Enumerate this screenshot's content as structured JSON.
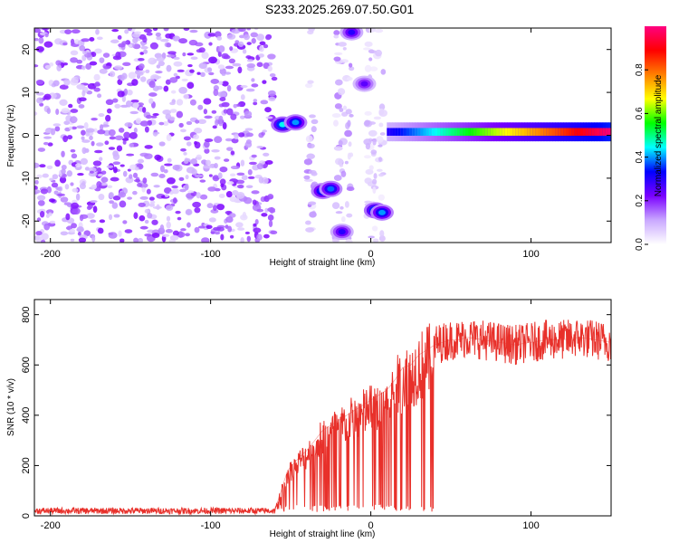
{
  "figure": {
    "title": "S233.2025.269.07.50.G01"
  },
  "chart_data": [
    {
      "type": "heatmap",
      "xlabel": "Height of straight line (km)",
      "ylabel": "Frequency (Hz)",
      "xlim": [
        -210,
        150
      ],
      "ylim": [
        -25,
        25
      ],
      "xticks": [
        -200,
        -100,
        0,
        100
      ],
      "yticks": [
        -20,
        -10,
        0,
        10,
        20
      ],
      "colorbar": {
        "label": "Normalized spectral amplitude",
        "range": [
          0,
          1
        ],
        "ticks": [
          0.0,
          0.2,
          0.4,
          0.6,
          0.8
        ],
        "colors": [
          "#ffffff",
          "#c9a8ff",
          "#7a00ff",
          "#0000ff",
          "#00ffff",
          "#00ff00",
          "#ffff00",
          "#ff8000",
          "#ff0000",
          "#ff0080"
        ]
      },
      "features": [
        {
          "kind": "noise-scatter",
          "x_range": [
            -210,
            -60
          ],
          "y_range": [
            -25,
            25
          ],
          "amplitude": 0.15
        },
        {
          "kind": "noise-scatter",
          "x_range": [
            -40,
            -35
          ],
          "y_range": [
            -25,
            25
          ],
          "amplitude": 0.1
        },
        {
          "kind": "noise-scatter",
          "x_range": [
            -22,
            -12
          ],
          "y_range": [
            -25,
            25
          ],
          "amplitude": 0.1
        },
        {
          "kind": "noise-scatter",
          "x_range": [
            -3,
            8
          ],
          "y_range": [
            -25,
            25
          ],
          "amplitude": 0.08
        },
        {
          "kind": "blob",
          "x": -55,
          "y": 2.5,
          "amplitude": 0.45
        },
        {
          "kind": "blob",
          "x": -47,
          "y": 3,
          "amplitude": 0.4
        },
        {
          "kind": "blob",
          "x": -30,
          "y": -13,
          "amplitude": 0.4
        },
        {
          "kind": "blob",
          "x": -25,
          "y": -12.5,
          "amplitude": 0.38
        },
        {
          "kind": "blob",
          "x": 3,
          "y": -17.5,
          "amplitude": 0.45
        },
        {
          "kind": "blob",
          "x": 7,
          "y": -18,
          "amplitude": 0.4
        },
        {
          "kind": "blob",
          "x": -18,
          "y": -22.5,
          "amplitude": 0.3
        },
        {
          "kind": "blob",
          "x": -12,
          "y": 24,
          "amplitude": 0.3
        },
        {
          "kind": "blob",
          "x": -4,
          "y": 12,
          "amplitude": 0.25
        },
        {
          "kind": "band",
          "x_start": 10,
          "x_end": 150,
          "y": 0.8,
          "amplitude_start": 0.3,
          "amplitude_end": 1.0
        }
      ]
    },
    {
      "type": "line",
      "xlabel": "Height of straight line (km)",
      "ylabel": "SNR (10 * v/v)",
      "xlim": [
        -210,
        150
      ],
      "ylim": [
        0,
        860
      ],
      "xticks": [
        -200,
        -100,
        0,
        100
      ],
      "yticks": [
        0,
        200,
        400,
        600,
        800
      ],
      "series": [
        {
          "color": "#e8302a",
          "x": [
            -210,
            -150,
            -100,
            -60,
            -52,
            -45,
            -40,
            -35,
            -30,
            -25,
            -20,
            -15,
            -10,
            -5,
            0,
            5,
            10,
            15,
            20,
            25,
            30,
            35,
            40,
            45,
            50,
            55,
            60,
            70,
            80,
            90,
            100,
            110,
            120,
            130,
            140,
            150
          ],
          "y": [
            20,
            20,
            20,
            20,
            180,
            230,
            260,
            300,
            340,
            360,
            380,
            400,
            420,
            440,
            460,
            480,
            500,
            540,
            590,
            600,
            640,
            660,
            680,
            690,
            700,
            700,
            710,
            700,
            690,
            680,
            690,
            700,
            700,
            710,
            700,
            690
          ]
        }
      ]
    }
  ]
}
